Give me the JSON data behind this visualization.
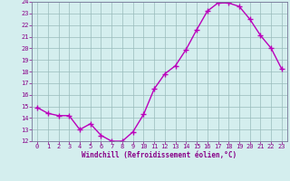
{
  "x": [
    0,
    1,
    2,
    3,
    4,
    5,
    6,
    7,
    8,
    9,
    10,
    11,
    12,
    13,
    14,
    15,
    16,
    17,
    18,
    19,
    20,
    21,
    22,
    23
  ],
  "y": [
    14.9,
    14.4,
    14.2,
    14.2,
    13.0,
    13.5,
    12.5,
    12.0,
    12.0,
    12.8,
    14.3,
    16.5,
    17.8,
    18.5,
    19.9,
    21.6,
    23.2,
    23.9,
    23.9,
    23.6,
    22.5,
    21.1,
    20.0,
    18.2
  ],
  "xlabel": "Windchill (Refroidissement éolien,°C)",
  "ylim": [
    12,
    24
  ],
  "xlim": [
    -0.5,
    23.5
  ],
  "yticks": [
    12,
    13,
    14,
    15,
    16,
    17,
    18,
    19,
    20,
    21,
    22,
    23,
    24
  ],
  "xticks": [
    0,
    1,
    2,
    3,
    4,
    5,
    6,
    7,
    8,
    9,
    10,
    11,
    12,
    13,
    14,
    15,
    16,
    17,
    18,
    19,
    20,
    21,
    22,
    23
  ],
  "line_color": "#bb00bb",
  "marker_color": "#bb00bb",
  "bg_color": "#d4eeee",
  "grid_color": "#99bbbb",
  "tick_label_color": "#880088",
  "xlabel_color": "#880088",
  "line_width": 1.0,
  "marker_size": 4.0
}
